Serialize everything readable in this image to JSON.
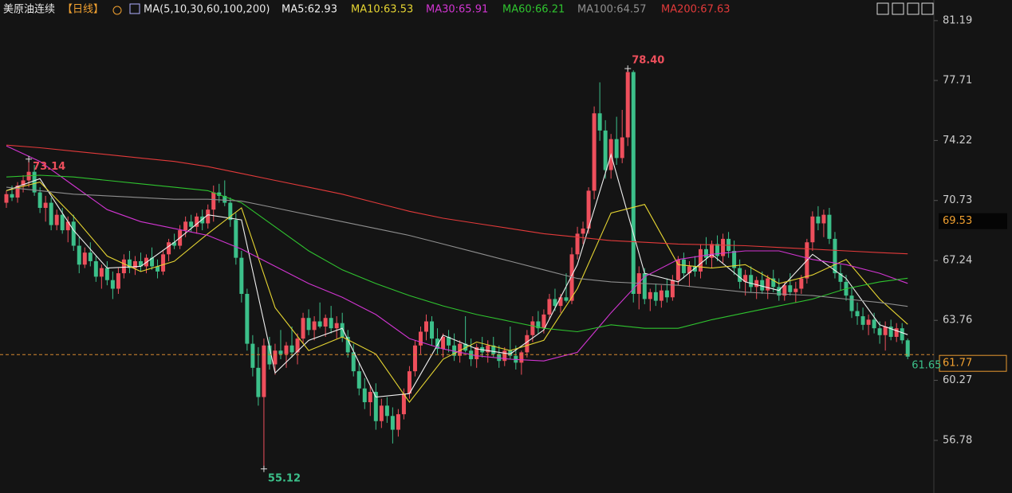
{
  "chart_data": {
    "type": "candlestick",
    "title": "美原油连续",
    "period": "【日线】",
    "ma_label": "MA(5,10,30,60,100,200)",
    "ylim": [
      53.72,
      82.39
    ],
    "yticks": [
      81.19,
      77.71,
      74.22,
      70.73,
      67.24,
      63.76,
      60.27,
      56.78
    ],
    "up_color": "#ee4f5c",
    "down_color": "#3cc08a",
    "candles": [
      [
        70.6,
        71.3,
        70.3,
        71.1
      ],
      [
        71.1,
        71.6,
        70.7,
        70.9
      ],
      [
        70.9,
        71.8,
        70.6,
        71.6
      ],
      [
        71.6,
        72.2,
        71.2,
        71.9
      ],
      [
        71.9,
        73.14,
        71.5,
        72.4
      ],
      [
        72.4,
        72.8,
        71.0,
        71.2
      ],
      [
        71.2,
        71.5,
        70.0,
        70.3
      ],
      [
        70.3,
        71.0,
        69.5,
        70.6
      ],
      [
        70.6,
        70.9,
        69.0,
        69.3
      ],
      [
        69.3,
        70.2,
        69.0,
        69.9
      ],
      [
        69.9,
        70.3,
        68.8,
        69.0
      ],
      [
        69.0,
        69.8,
        68.3,
        69.5
      ],
      [
        69.5,
        69.9,
        67.8,
        68.1
      ],
      [
        68.1,
        68.6,
        66.5,
        67.0
      ],
      [
        67.0,
        68.0,
        66.8,
        67.7
      ],
      [
        67.7,
        68.3,
        66.9,
        67.2
      ],
      [
        67.2,
        67.5,
        66.0,
        66.3
      ],
      [
        66.3,
        67.0,
        65.6,
        66.8
      ],
      [
        66.8,
        67.2,
        65.8,
        66.1
      ],
      [
        66.1,
        66.6,
        65.0,
        65.6
      ],
      [
        65.6,
        66.8,
        65.3,
        66.5
      ],
      [
        66.5,
        67.6,
        66.2,
        67.3
      ],
      [
        67.3,
        67.8,
        66.5,
        66.8
      ],
      [
        66.8,
        67.5,
        66.4,
        67.2
      ],
      [
        67.2,
        67.7,
        66.6,
        66.9
      ],
      [
        66.9,
        67.6,
        66.5,
        67.4
      ],
      [
        67.4,
        68.0,
        66.7,
        66.9
      ],
      [
        66.9,
        67.3,
        66.2,
        66.6
      ],
      [
        66.6,
        67.8,
        66.4,
        67.6
      ],
      [
        67.6,
        68.5,
        67.2,
        68.3
      ],
      [
        68.3,
        68.8,
        67.9,
        68.1
      ],
      [
        68.1,
        69.3,
        67.9,
        69.0
      ],
      [
        69.0,
        69.8,
        68.6,
        69.5
      ],
      [
        69.5,
        69.9,
        68.9,
        69.2
      ],
      [
        69.2,
        70.0,
        68.8,
        69.8
      ],
      [
        69.8,
        70.2,
        69.0,
        69.4
      ],
      [
        69.4,
        70.5,
        69.1,
        70.2
      ],
      [
        70.2,
        71.6,
        69.5,
        71.2
      ],
      [
        71.2,
        71.7,
        70.6,
        71.0
      ],
      [
        71.0,
        71.9,
        70.4,
        70.6
      ],
      [
        70.6,
        70.9,
        69.2,
        69.6
      ],
      [
        69.6,
        70.0,
        67.0,
        67.4
      ],
      [
        67.4,
        67.8,
        64.8,
        65.3
      ],
      [
        65.3,
        65.6,
        62.0,
        62.4
      ],
      [
        62.4,
        62.9,
        60.5,
        61.0
      ],
      [
        61.0,
        62.2,
        58.8,
        59.3
      ],
      [
        59.3,
        62.7,
        55.12,
        62.3
      ],
      [
        62.3,
        62.8,
        60.9,
        61.2
      ],
      [
        61.2,
        62.4,
        60.6,
        62.0
      ],
      [
        62.0,
        63.2,
        61.5,
        61.8
      ],
      [
        61.8,
        62.5,
        61.0,
        62.3
      ],
      [
        62.3,
        63.4,
        61.6,
        61.9
      ],
      [
        61.9,
        63.0,
        61.2,
        62.7
      ],
      [
        62.7,
        64.2,
        62.4,
        63.9
      ],
      [
        63.9,
        64.4,
        62.9,
        63.2
      ],
      [
        63.2,
        64.0,
        62.6,
        63.7
      ],
      [
        63.7,
        64.8,
        63.3,
        63.4
      ],
      [
        63.4,
        64.1,
        62.8,
        63.9
      ],
      [
        63.9,
        64.6,
        63.0,
        63.3
      ],
      [
        63.3,
        64.0,
        62.7,
        63.6
      ],
      [
        63.6,
        64.2,
        62.5,
        62.8
      ],
      [
        62.8,
        63.2,
        61.6,
        61.9
      ],
      [
        61.9,
        62.4,
        60.5,
        60.8
      ],
      [
        60.8,
        61.3,
        59.4,
        59.8
      ],
      [
        59.8,
        60.4,
        58.6,
        59.0
      ],
      [
        59.0,
        60.0,
        58.2,
        59.6
      ],
      [
        59.6,
        60.1,
        57.4,
        57.9
      ],
      [
        57.9,
        59.2,
        57.5,
        58.8
      ],
      [
        58.8,
        59.3,
        57.8,
        58.2
      ],
      [
        58.2,
        58.7,
        56.6,
        57.4
      ],
      [
        57.4,
        58.6,
        57.0,
        58.3
      ],
      [
        58.3,
        59.8,
        58.0,
        59.5
      ],
      [
        59.5,
        61.1,
        59.2,
        60.8
      ],
      [
        60.8,
        62.6,
        60.5,
        62.3
      ],
      [
        62.3,
        63.4,
        61.8,
        63.1
      ],
      [
        63.1,
        64.1,
        62.6,
        63.7
      ],
      [
        63.7,
        64.0,
        62.3,
        62.7
      ],
      [
        62.7,
        63.3,
        61.8,
        62.1
      ],
      [
        62.1,
        63.0,
        61.6,
        62.8
      ],
      [
        62.8,
        63.2,
        61.9,
        62.3
      ],
      [
        62.3,
        63.0,
        61.4,
        61.7
      ],
      [
        61.7,
        62.6,
        61.3,
        62.4
      ],
      [
        62.4,
        64.0,
        61.9,
        62.0
      ],
      [
        62.0,
        62.7,
        61.1,
        61.5
      ],
      [
        61.5,
        62.4,
        61.0,
        62.2
      ],
      [
        62.2,
        62.8,
        61.6,
        61.9
      ],
      [
        61.9,
        62.6,
        61.3,
        62.3
      ],
      [
        62.3,
        62.8,
        61.6,
        61.8
      ],
      [
        61.8,
        62.3,
        61.0,
        61.4
      ],
      [
        61.4,
        62.2,
        61.1,
        62.0
      ],
      [
        62.0,
        63.4,
        61.5,
        61.7
      ],
      [
        61.7,
        62.3,
        60.9,
        61.3
      ],
      [
        61.3,
        62.0,
        60.6,
        61.9
      ],
      [
        61.9,
        63.2,
        61.6,
        62.9
      ],
      [
        62.9,
        64.0,
        62.5,
        63.7
      ],
      [
        63.7,
        64.3,
        63.0,
        63.3
      ],
      [
        63.3,
        64.4,
        63.0,
        64.1
      ],
      [
        64.1,
        65.3,
        63.8,
        65.0
      ],
      [
        65.0,
        65.6,
        64.3,
        64.6
      ],
      [
        64.6,
        65.3,
        64.2,
        65.1
      ],
      [
        65.1,
        66.5,
        64.8,
        64.9
      ],
      [
        64.9,
        68.0,
        64.7,
        67.6
      ],
      [
        67.6,
        69.2,
        67.3,
        68.8
      ],
      [
        68.8,
        69.5,
        68.2,
        69.1
      ],
      [
        69.1,
        71.5,
        68.8,
        71.3
      ],
      [
        71.3,
        76.2,
        70.8,
        75.8
      ],
      [
        75.8,
        77.6,
        74.2,
        74.8
      ],
      [
        74.8,
        75.4,
        72.0,
        72.5
      ],
      [
        72.5,
        74.6,
        72.0,
        74.3
      ],
      [
        74.3,
        75.6,
        72.8,
        73.2
      ],
      [
        73.2,
        76.0,
        72.9,
        74.4
      ],
      [
        74.4,
        78.4,
        73.9,
        78.2
      ],
      [
        78.2,
        78.3,
        64.8,
        65.3
      ],
      [
        65.3,
        66.9,
        64.4,
        66.5
      ],
      [
        66.5,
        66.8,
        64.7,
        65.0
      ],
      [
        65.0,
        65.6,
        64.3,
        65.4
      ],
      [
        65.4,
        65.9,
        64.6,
        64.9
      ],
      [
        64.9,
        65.8,
        64.5,
        65.5
      ],
      [
        65.5,
        66.2,
        64.8,
        65.1
      ],
      [
        65.1,
        66.4,
        64.9,
        66.1
      ],
      [
        66.1,
        67.5,
        65.8,
        67.3
      ],
      [
        67.3,
        67.7,
        66.2,
        66.5
      ],
      [
        66.5,
        67.2,
        65.7,
        66.9
      ],
      [
        66.9,
        67.5,
        66.3,
        66.6
      ],
      [
        66.6,
        68.2,
        66.2,
        67.9
      ],
      [
        67.9,
        68.6,
        67.0,
        67.4
      ],
      [
        67.4,
        68.4,
        66.8,
        68.2
      ],
      [
        68.2,
        68.7,
        67.2,
        67.5
      ],
      [
        67.5,
        68.8,
        67.1,
        68.5
      ],
      [
        68.5,
        68.9,
        67.4,
        67.8
      ],
      [
        67.8,
        68.4,
        66.4,
        66.8
      ],
      [
        66.8,
        67.3,
        65.6,
        66.0
      ],
      [
        66.0,
        66.7,
        65.2,
        66.4
      ],
      [
        66.4,
        66.9,
        65.4,
        65.7
      ],
      [
        65.7,
        66.3,
        65.0,
        66.1
      ],
      [
        66.1,
        66.6,
        65.3,
        65.5
      ],
      [
        65.5,
        66.4,
        65.0,
        66.2
      ],
      [
        66.2,
        66.7,
        65.4,
        65.7
      ],
      [
        65.7,
        66.2,
        64.9,
        65.2
      ],
      [
        65.2,
        66.0,
        64.9,
        65.8
      ],
      [
        65.8,
        66.5,
        65.2,
        65.4
      ],
      [
        65.4,
        66.0,
        64.8,
        65.6
      ],
      [
        65.6,
        66.4,
        65.3,
        66.2
      ],
      [
        66.2,
        68.5,
        65.9,
        68.3
      ],
      [
        68.3,
        70.1,
        67.8,
        69.8
      ],
      [
        69.8,
        70.4,
        69.0,
        69.4
      ],
      [
        69.4,
        70.2,
        68.6,
        69.9
      ],
      [
        69.9,
        70.3,
        68.2,
        68.5
      ],
      [
        68.5,
        68.9,
        66.2,
        66.5
      ],
      [
        66.5,
        67.0,
        65.5,
        66.0
      ],
      [
        66.0,
        66.4,
        64.9,
        65.2
      ],
      [
        65.2,
        65.7,
        63.9,
        64.3
      ],
      [
        64.3,
        64.8,
        63.5,
        64.0
      ],
      [
        64.0,
        64.5,
        63.2,
        63.5
      ],
      [
        63.5,
        64.1,
        62.9,
        63.8
      ],
      [
        63.8,
        64.2,
        63.0,
        63.3
      ],
      [
        63.3,
        63.7,
        62.4,
        62.9
      ],
      [
        62.9,
        63.7,
        62.0,
        63.4
      ],
      [
        63.4,
        63.8,
        62.6,
        62.8
      ],
      [
        62.8,
        63.6,
        62.5,
        63.3
      ],
      [
        63.3,
        63.6,
        62.4,
        62.6
      ],
      [
        62.6,
        62.7,
        61.5,
        61.65
      ]
    ],
    "ma_x": [
      0,
      6,
      12,
      18,
      24,
      30,
      36,
      42,
      48,
      54,
      60,
      66,
      72,
      78,
      84,
      90,
      96,
      102,
      108,
      114,
      120,
      126,
      132,
      138,
      144,
      150,
      156,
      161
    ],
    "series": [
      {
        "name": "MA5:62.93",
        "color": "#f0f0f0",
        "values": [
          71.3,
          72.0,
          69.0,
          66.8,
          66.9,
          68.3,
          69.9,
          69.6,
          60.7,
          62.6,
          63.3,
          59.3,
          59.5,
          62.9,
          62.1,
          61.8,
          63.2,
          67.0,
          73.4,
          66.5,
          66.0,
          67.6,
          66.0,
          65.5,
          67.6,
          66.2,
          63.5,
          62.93
        ]
      },
      {
        "name": "MA10:63.53",
        "color": "#e6d532",
        "values": [
          71.3,
          71.8,
          69.8,
          67.5,
          66.6,
          67.2,
          68.8,
          70.3,
          64.5,
          62.0,
          62.8,
          61.8,
          59.0,
          61.5,
          62.5,
          62.0,
          62.6,
          65.6,
          70.0,
          70.5,
          67.0,
          66.8,
          67.0,
          65.9,
          66.4,
          67.3,
          65.0,
          63.53
        ]
      },
      {
        "name": "MA30:65.91",
        "color": "#d235d2",
        "values": [
          73.9,
          73.0,
          71.6,
          70.2,
          69.5,
          69.1,
          68.7,
          67.9,
          66.9,
          65.9,
          65.1,
          64.1,
          62.7,
          62.1,
          61.7,
          61.5,
          61.4,
          61.9,
          64.2,
          66.3,
          67.3,
          67.6,
          67.8,
          67.8,
          67.3,
          67.0,
          66.5,
          65.91
        ]
      },
      {
        "name": "MA60:66.21",
        "color": "#2fc42f",
        "values": [
          72.1,
          72.2,
          72.1,
          71.9,
          71.7,
          71.5,
          71.3,
          70.6,
          69.2,
          67.8,
          66.7,
          65.9,
          65.2,
          64.6,
          64.1,
          63.7,
          63.3,
          63.1,
          63.5,
          63.3,
          63.3,
          63.8,
          64.2,
          64.6,
          65.0,
          65.6,
          66.0,
          66.21
        ]
      },
      {
        "name": "MA100:64.57",
        "color": "#8f8f8f",
        "values": [
          71.5,
          71.3,
          71.1,
          71.0,
          70.9,
          70.8,
          70.8,
          70.7,
          70.3,
          69.9,
          69.5,
          69.1,
          68.7,
          68.2,
          67.7,
          67.2,
          66.7,
          66.2,
          66.0,
          65.9,
          65.8,
          65.6,
          65.4,
          65.3,
          65.2,
          65.0,
          64.8,
          64.57
        ]
      },
      {
        "name": "MA200:67.63",
        "color": "#e23a3a",
        "values": [
          73.95,
          73.8,
          73.6,
          73.4,
          73.2,
          73.0,
          72.7,
          72.3,
          71.9,
          71.5,
          71.1,
          70.6,
          70.1,
          69.7,
          69.4,
          69.1,
          68.8,
          68.6,
          68.4,
          68.3,
          68.2,
          68.15,
          68.1,
          68.0,
          67.9,
          67.8,
          67.7,
          67.63
        ]
      }
    ],
    "annotations": [
      {
        "value": 73.14,
        "label": "73.14",
        "at": "high"
      },
      {
        "value": 78.4,
        "label": "78.40",
        "at": "high"
      },
      {
        "value": 55.12,
        "label": "55.12",
        "at": "low"
      }
    ],
    "price_tags": [
      69.53,
      61.77
    ],
    "last_close": 61.65
  }
}
